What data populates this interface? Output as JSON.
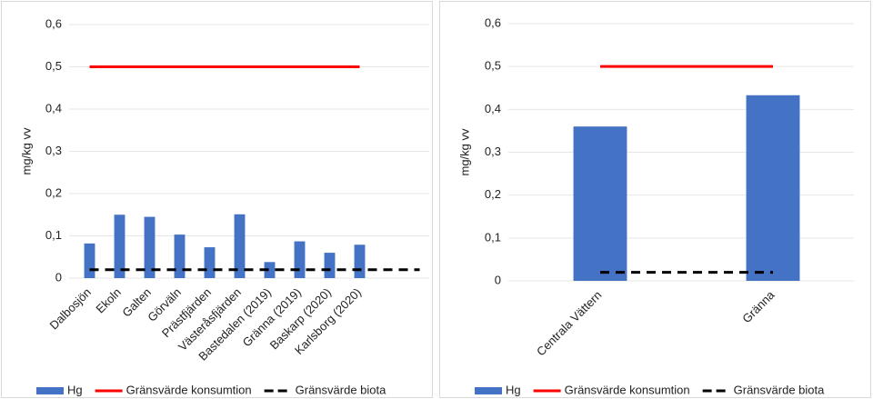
{
  "chart_data": [
    {
      "type": "bar",
      "y_label": "mg/kg vv",
      "categories": [
        "Dalbosjön",
        "Ekoln",
        "Galten",
        "Görväln",
        "Prästfjärden",
        "Västeråsfjärden",
        "Bastedalen (2019)",
        "Gränna (2019)",
        "Baskarp (2020)",
        "Karlsborg (2020)",
        null,
        null
      ],
      "series": [
        {
          "name": "Hg",
          "type": "bar",
          "color": "#4472c4",
          "values": [
            0.082,
            0.15,
            0.145,
            0.103,
            0.073,
            0.151,
            0.038,
            0.087,
            0.06,
            0.079,
            null,
            null
          ]
        },
        {
          "name": "Gränsvärde konsumtion",
          "type": "line",
          "color": "#ff0000",
          "style": "solid",
          "values": [
            0.5,
            0.5,
            0.5,
            0.5,
            0.5,
            0.5,
            0.5,
            0.5,
            0.5,
            0.5,
            null,
            null
          ]
        },
        {
          "name": "Gränsvärde biota",
          "type": "line",
          "color": "#000000",
          "style": "dashed",
          "values": [
            0.02,
            0.02,
            0.02,
            0.02,
            0.02,
            0.02,
            0.02,
            0.02,
            0.02,
            0.02,
            0.02,
            0.02
          ]
        }
      ],
      "ylim": [
        0,
        0.6
      ],
      "yticks": [
        0,
        {
          "value": 0.1,
          "label": "0,1"
        },
        {
          "value": 0.2,
          "label": "0,2"
        },
        {
          "value": 0.3,
          "label": "0,3"
        },
        {
          "value": 0.4,
          "label": "0,4"
        },
        {
          "value": 0.5,
          "label": "0,5"
        },
        {
          "value": 0.6,
          "label": "0,6"
        }
      ],
      "grid": true,
      "legend": "bottom"
    },
    {
      "type": "bar",
      "y_label": "mg/kg vv",
      "categories": [
        "Centrala Vättern",
        "Gränna"
      ],
      "series": [
        {
          "name": "Hg",
          "type": "bar",
          "color": "#4472c4",
          "values": [
            0.36,
            0.433
          ]
        },
        {
          "name": "Gränsvärde konsumtion",
          "type": "line",
          "color": "#ff0000",
          "style": "solid",
          "values": [
            0.5,
            0.5
          ]
        },
        {
          "name": "Gränsvärde biota",
          "type": "line",
          "color": "#000000",
          "style": "dashed",
          "values": [
            0.02,
            0.02
          ]
        }
      ],
      "ylim": [
        0,
        0.6
      ],
      "yticks": [
        0,
        {
          "value": 0.1,
          "label": "0,1"
        },
        {
          "value": 0.2,
          "label": "0,2"
        },
        {
          "value": 0.3,
          "label": "0,3"
        },
        {
          "value": 0.4,
          "label": "0,4"
        },
        {
          "value": 0.5,
          "label": "0,5"
        },
        {
          "value": 0.6,
          "label": "0,6"
        }
      ],
      "grid": true,
      "legend": "bottom"
    }
  ]
}
